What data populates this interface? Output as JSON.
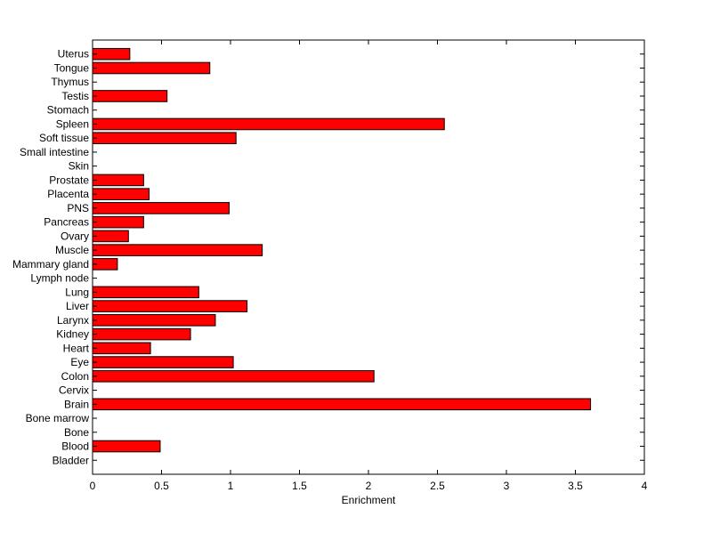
{
  "chart_data": {
    "type": "bar",
    "orientation": "horizontal",
    "xlabel": "Enrichment",
    "ylabel": "",
    "title": "",
    "xlim": [
      0,
      4
    ],
    "xticks": [
      "0",
      "0.5",
      "1",
      "1.5",
      "2",
      "2.5",
      "3",
      "3.5",
      "4"
    ],
    "grid": false,
    "bar_color": "#ff0000",
    "categories": [
      "Bladder",
      "Blood",
      "Bone",
      "Bone marrow",
      "Brain",
      "Cervix",
      "Colon",
      "Eye",
      "Heart",
      "Kidney",
      "Larynx",
      "Liver",
      "Lung",
      "Lymph node",
      "Mammary gland",
      "Muscle",
      "Ovary",
      "Pancreas",
      "PNS",
      "Placenta",
      "Prostate",
      "Skin",
      "Small intestine",
      "Soft tissue",
      "Spleen",
      "Stomach",
      "Testis",
      "Thymus",
      "Tongue",
      "Uterus"
    ],
    "values": [
      0,
      0.49,
      0,
      0,
      3.61,
      0,
      2.04,
      1.02,
      0.42,
      0.71,
      0.89,
      1.12,
      0.77,
      0,
      0.18,
      1.23,
      0.26,
      0.37,
      0.99,
      0.41,
      0.37,
      0,
      0,
      1.04,
      2.55,
      0,
      0.54,
      0,
      0.85,
      0.27
    ]
  }
}
